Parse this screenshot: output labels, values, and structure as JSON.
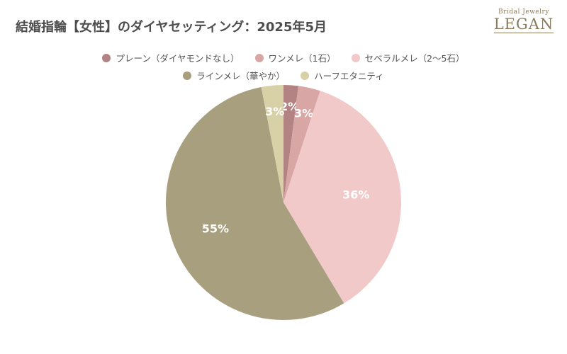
{
  "header": {
    "title": "結婚指輪【女性】のダイヤセッティング：2025年5月"
  },
  "logo": {
    "line1": "Bridal Jewelry",
    "line2": "LEGAN"
  },
  "chart_data": {
    "type": "pie",
    "title": "結婚指輪【女性】のダイヤセッティング：2025年5月",
    "legend_position": "top",
    "slices": [
      {
        "name": "プレーン（ダイヤモンドなし）",
        "value": 2,
        "label": "2%",
        "color": "#b38282"
      },
      {
        "name": "ワンメレ（1石）",
        "value": 3,
        "label": "3%",
        "color": "#d9a6a6"
      },
      {
        "name": "セベラルメレ（2〜5石）",
        "value": 36,
        "label": "36%",
        "color": "#f2c9c9"
      },
      {
        "name": "ラインメレ（華やか）",
        "value": 55,
        "label": "55%",
        "color": "#a89f7e"
      },
      {
        "name": "ハーフエタニティ",
        "value": 3,
        "label": "3%",
        "color": "#d8d0a6"
      }
    ]
  }
}
